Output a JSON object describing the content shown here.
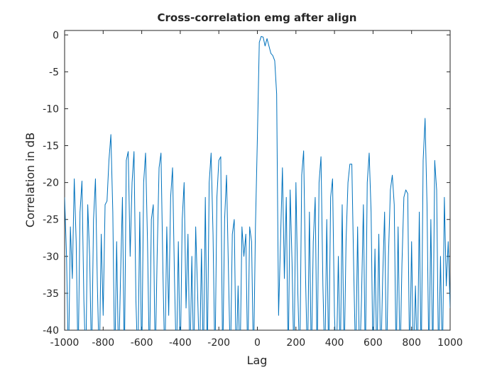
{
  "chart_data": {
    "type": "line",
    "title": "Cross-correlation emg after align",
    "xlabel": "Lag",
    "ylabel": "Correlation in dB",
    "x": [
      -1000,
      -990,
      -980,
      -970,
      -960,
      -950,
      -940,
      -930,
      -920,
      -910,
      -900,
      -890,
      -880,
      -870,
      -860,
      -850,
      -840,
      -830,
      -820,
      -810,
      -800,
      -790,
      -780,
      -770,
      -760,
      -750,
      -740,
      -730,
      -720,
      -710,
      -700,
      -690,
      -680,
      -670,
      -660,
      -650,
      -640,
      -630,
      -620,
      -610,
      -600,
      -590,
      -580,
      -570,
      -560,
      -550,
      -540,
      -530,
      -520,
      -510,
      -500,
      -490,
      -480,
      -470,
      -460,
      -450,
      -440,
      -430,
      -420,
      -410,
      -400,
      -390,
      -380,
      -370,
      -360,
      -350,
      -340,
      -330,
      -320,
      -310,
      -300,
      -290,
      -280,
      -270,
      -260,
      -250,
      -240,
      -230,
      -220,
      -210,
      -200,
      -190,
      -180,
      -170,
      -160,
      -150,
      -140,
      -130,
      -120,
      -110,
      -100,
      -90,
      -80,
      -70,
      -60,
      -50,
      -40,
      -30,
      -20,
      -10,
      0,
      10,
      20,
      30,
      40,
      50,
      60,
      70,
      80,
      90,
      100,
      110,
      120,
      130,
      140,
      150,
      160,
      170,
      180,
      190,
      200,
      210,
      220,
      230,
      240,
      250,
      260,
      270,
      280,
      290,
      300,
      310,
      320,
      330,
      340,
      350,
      360,
      370,
      380,
      390,
      400,
      410,
      420,
      430,
      440,
      450,
      460,
      470,
      480,
      490,
      500,
      510,
      520,
      530,
      540,
      550,
      560,
      570,
      580,
      590,
      600,
      610,
      620,
      630,
      640,
      650,
      660,
      670,
      680,
      690,
      700,
      710,
      720,
      730,
      740,
      750,
      760,
      770,
      780,
      790,
      800,
      810,
      820,
      830,
      840,
      850,
      860,
      870,
      880,
      890,
      900,
      910,
      920,
      930,
      940,
      950,
      960,
      970,
      980,
      990,
      1000
    ],
    "series": [
      {
        "color": "#0072BD",
        "values": [
          -22,
          -30,
          -45,
          -26,
          -33,
          -19.5,
          -28,
          -45,
          -24,
          -19.8,
          -36,
          -45,
          -23,
          -30,
          -45,
          -25,
          -19.5,
          -34,
          -45,
          -27,
          -38,
          -23,
          -22.5,
          -17,
          -13.5,
          -24,
          -45,
          -28,
          -45,
          -33,
          -22,
          -45,
          -17,
          -15.8,
          -30,
          -20,
          -15.8,
          -36,
          -45,
          -24,
          -45,
          -20,
          -16,
          -28,
          -45,
          -25,
          -23,
          -45,
          -30,
          -18,
          -16,
          -32,
          -45,
          -26,
          -38,
          -22,
          -18,
          -33,
          -45,
          -28,
          -45,
          -25,
          -20,
          -37,
          -27,
          -45,
          -30,
          -45,
          -26,
          -35,
          -45,
          -29,
          -45,
          -22,
          -45,
          -20,
          -16,
          -27,
          -45,
          -22,
          -17,
          -16.5,
          -45,
          -25,
          -19,
          -32,
          -45,
          -27,
          -25,
          -45,
          -34,
          -45,
          -26,
          -30,
          -27,
          -45,
          -26,
          -28,
          -45,
          -26,
          -14,
          -1,
          -0.2,
          -0.3,
          -1.5,
          -0.5,
          -1.5,
          -2.5,
          -2.8,
          -3.5,
          -8,
          -38,
          -28,
          -18,
          -33,
          -22,
          -45,
          -21,
          -31,
          -45,
          -20,
          -35,
          -45,
          -19,
          -15.7,
          -33,
          -45,
          -24,
          -45,
          -28,
          -22,
          -45,
          -20,
          -16.5,
          -34,
          -45,
          -25,
          -45,
          -22,
          -19.5,
          -38,
          -45,
          -30,
          -45,
          -23,
          -45,
          -28,
          -20,
          -17.5,
          -17.5,
          -32,
          -45,
          -26,
          -45,
          -36,
          -23,
          -45,
          -20,
          -16,
          -24,
          -45,
          -29,
          -45,
          -27,
          -45,
          -33,
          -24,
          -45,
          -30,
          -21,
          -19,
          -23,
          -45,
          -26,
          -45,
          -31,
          -22,
          -21,
          -21.5,
          -45,
          -28,
          -45,
          -34,
          -45,
          -24,
          -45,
          -17,
          -11.3,
          -23,
          -45,
          -25,
          -45,
          -17,
          -21,
          -45,
          -30,
          -45,
          -22,
          -34,
          -28,
          -37
        ]
      }
    ],
    "xlim": [
      -1000,
      1000
    ],
    "ylim": [
      -40,
      0.6
    ],
    "xticks": [
      -1000,
      -800,
      -600,
      -400,
      -200,
      0,
      200,
      400,
      600,
      800,
      1000
    ],
    "yticks": [
      -40,
      -35,
      -30,
      -25,
      -20,
      -15,
      -10,
      -5,
      0
    ]
  }
}
